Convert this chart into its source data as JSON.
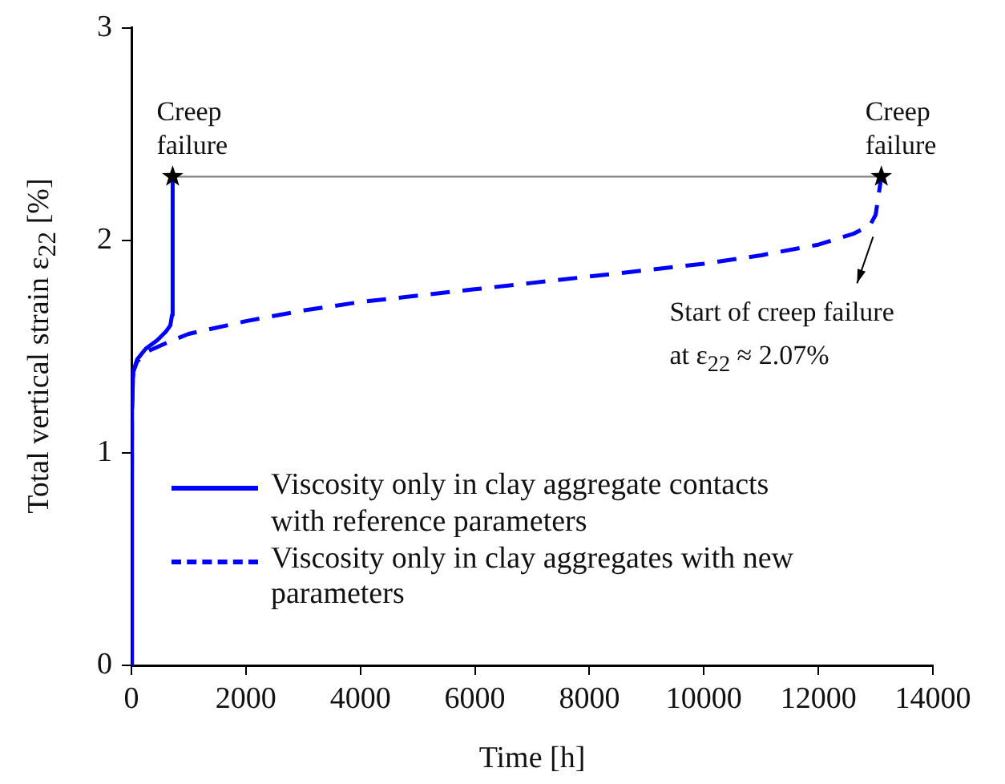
{
  "chart_data": {
    "type": "line",
    "xlabel": "Time [h]",
    "ylabel": "Total vertical strain ε$_{22}$ [%]",
    "xlim": [
      0,
      14000
    ],
    "xticks": [
      0,
      2000,
      4000,
      6000,
      8000,
      10000,
      12000,
      14000
    ],
    "ylim": [
      0,
      3
    ],
    "yticks": [
      0,
      1,
      2,
      3
    ],
    "grid": false,
    "legend": "left",
    "marker": "none",
    "series": [
      {
        "name": "Viscosity only in clay aggregate contacts with reference parameters",
        "color": "#0000ff",
        "line_style": "solid",
        "x": [
          0,
          10,
          30,
          100,
          250,
          450,
          600,
          680,
          710,
          720
        ],
        "values": [
          0,
          1.2,
          1.38,
          1.44,
          1.49,
          1.53,
          1.57,
          1.6,
          1.65,
          2.3
        ]
      },
      {
        "name": "Viscosity only in clay aggregates with new parameters",
        "color": "#0000ff",
        "line_style": "dashed",
        "x": [
          0,
          10,
          30,
          100,
          300,
          720,
          1000,
          2000,
          3000,
          4000,
          5000,
          6000,
          7000,
          8000,
          9000,
          10000,
          11000,
          12000,
          12600,
          12900,
          13000,
          13100
        ],
        "values": [
          0,
          1.2,
          1.38,
          1.43,
          1.48,
          1.53,
          1.56,
          1.62,
          1.67,
          1.71,
          1.74,
          1.77,
          1.8,
          1.83,
          1.86,
          1.89,
          1.93,
          1.98,
          2.03,
          2.07,
          2.12,
          2.3
        ]
      },
      {
        "color": "#808080",
        "line_style": "solid",
        "x": [
          720,
          13100
        ],
        "values": [
          2.3,
          2.3
        ]
      },
      {
        "type": "scatter",
        "color": "#000000",
        "marker": "star",
        "x": [
          720,
          13100
        ],
        "values": [
          2.3,
          2.3
        ]
      }
    ],
    "annotations": [
      {
        "text": "Creep failure",
        "x": 720,
        "y": 2.3
      },
      {
        "text": "Creep failure",
        "x": 13100,
        "y": 2.3
      },
      {
        "text": "Start of creep failure at ε$_{22}$ ≈ 2.07%",
        "x": 12900,
        "y": 2.07
      }
    ]
  }
}
